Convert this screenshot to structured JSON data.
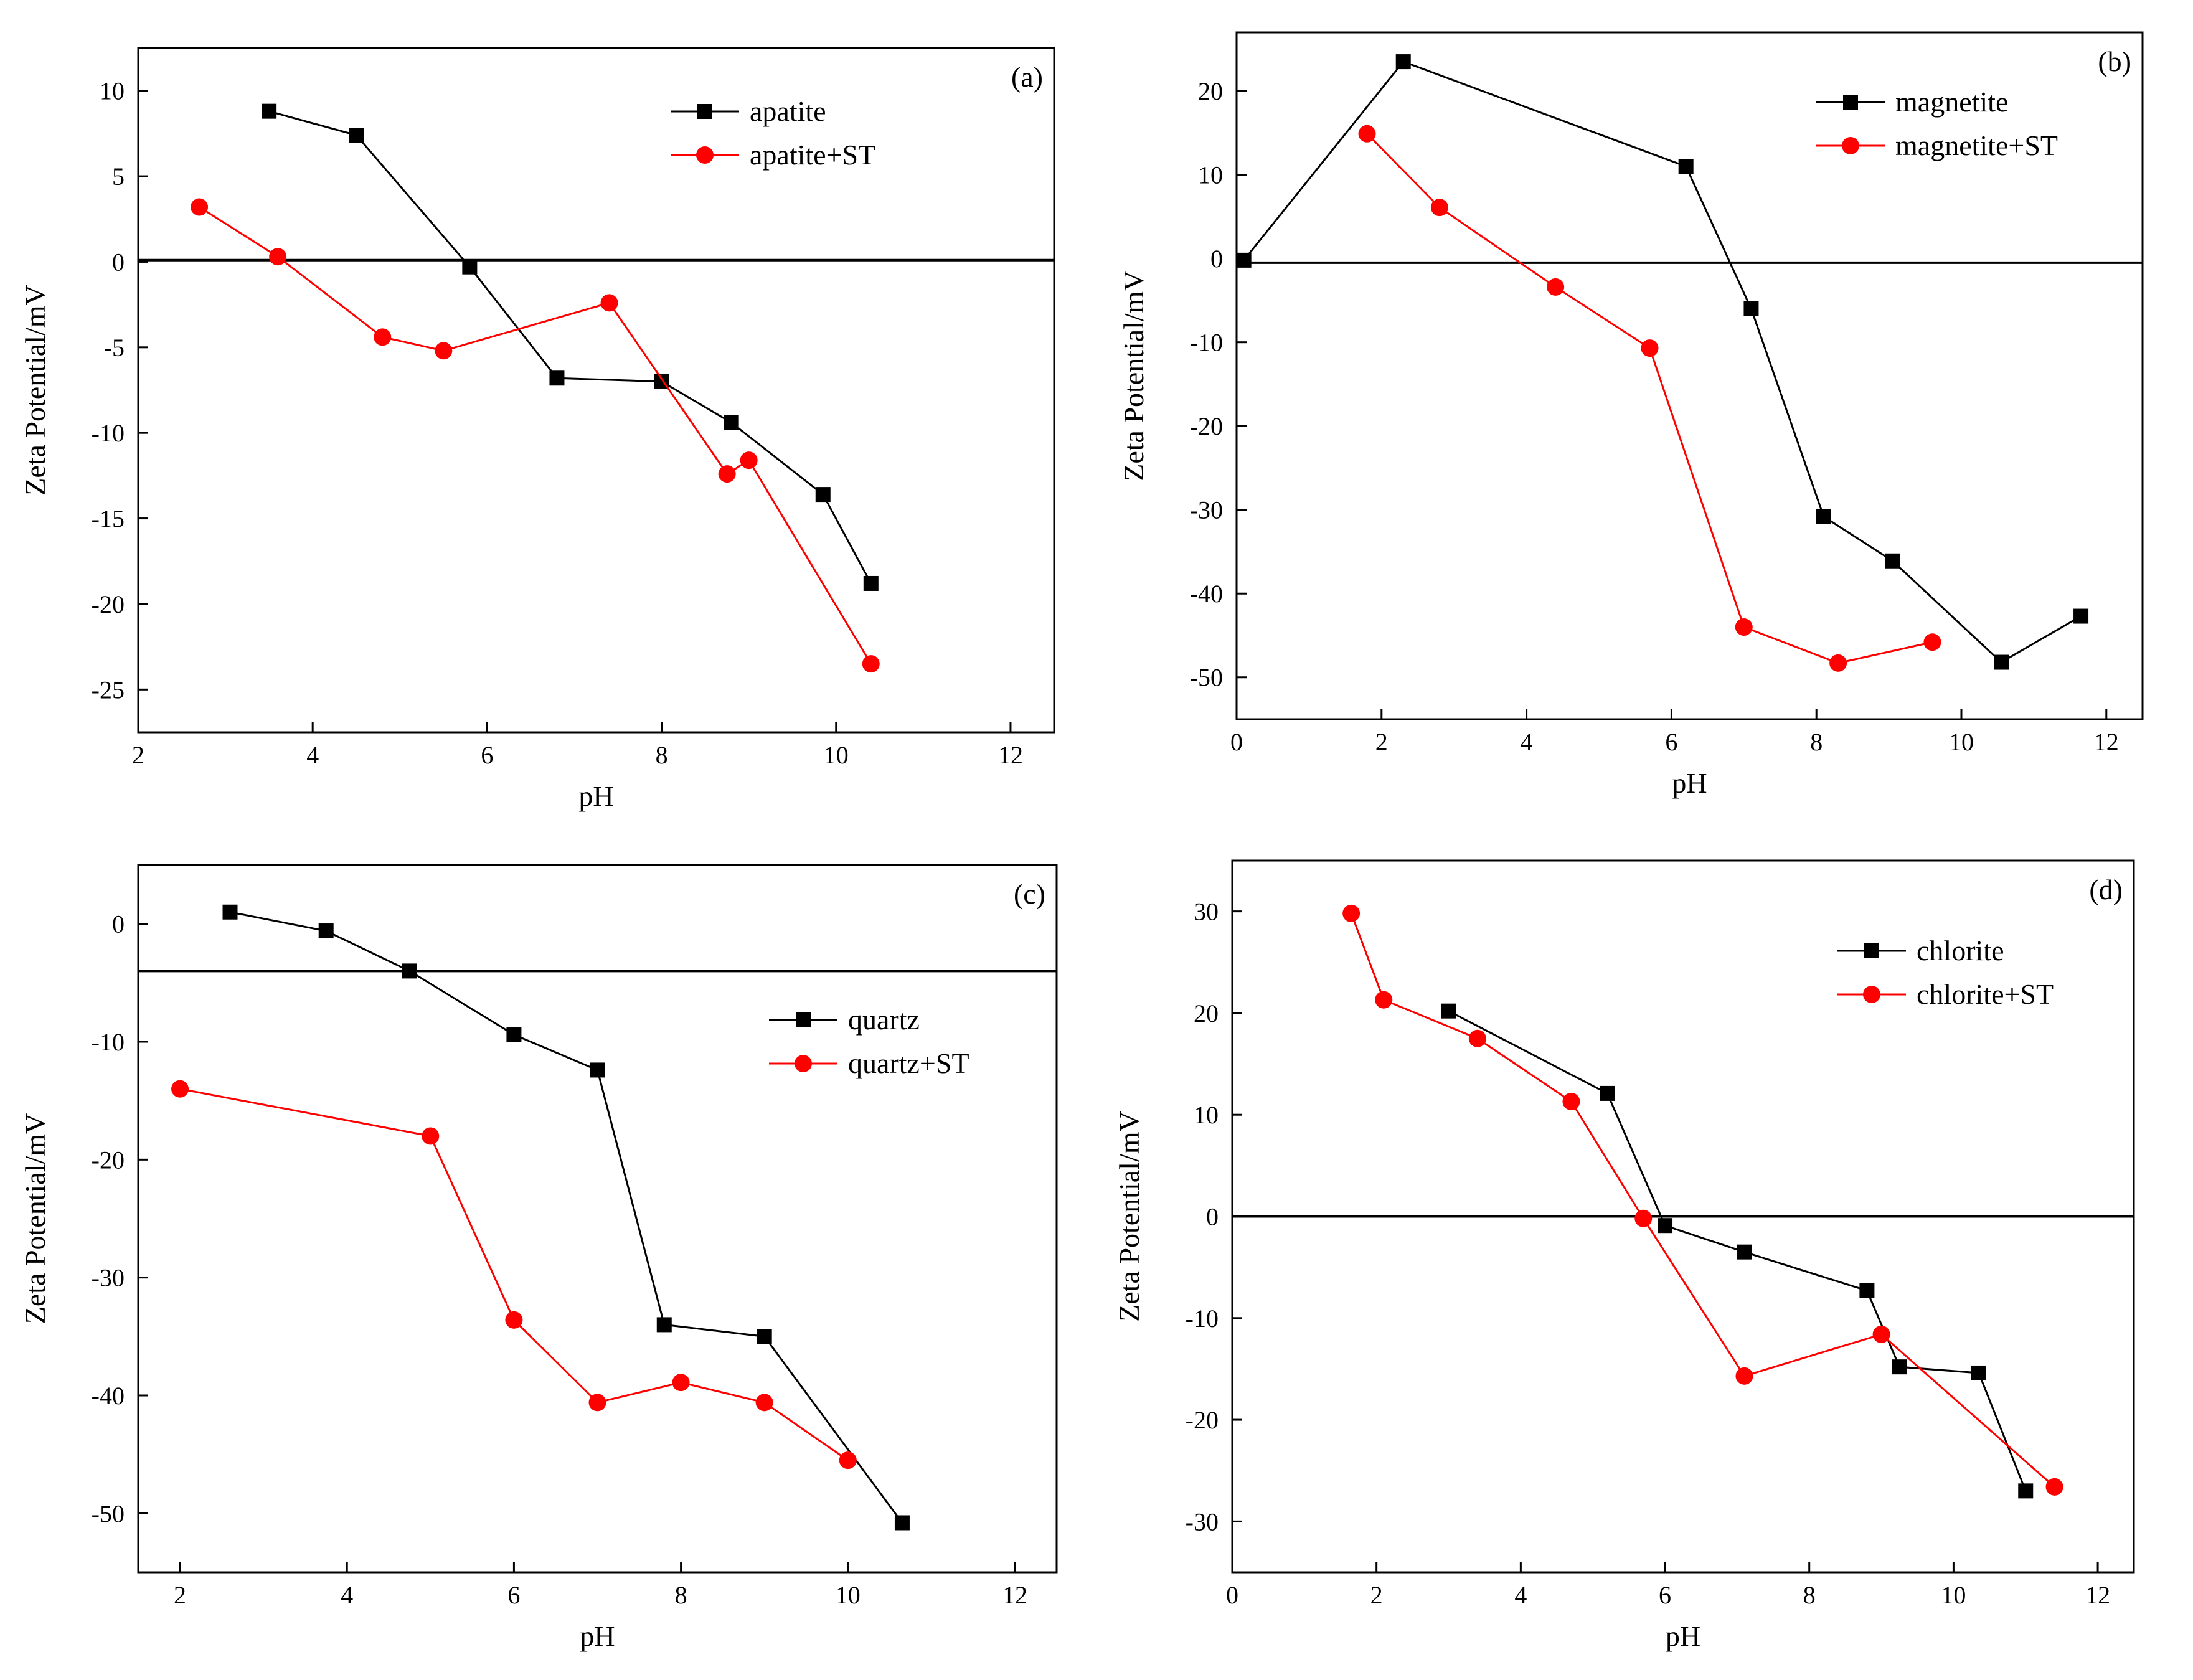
{
  "colors": {
    "series_black": "#000000",
    "series_red": "#ff0000",
    "axis": "#000000"
  },
  "chart_data": [
    {
      "type": "line",
      "panel_label": "(a)",
      "xlabel": "pH",
      "ylabel": "Zeta Potential/mV",
      "xlim": [
        2,
        12.5
      ],
      "ylim": [
        -27.5,
        12.5
      ],
      "xticks": [
        2,
        4,
        6,
        8,
        10,
        12
      ],
      "yticks": [
        10,
        5,
        0,
        -5,
        -10,
        -15,
        -20,
        -25
      ],
      "reference_line_y": 0.1,
      "legend_position": "top-right",
      "series": [
        {
          "name": "apatite",
          "marker": "square",
          "color": "#000000",
          "x": [
            3.5,
            4.5,
            5.8,
            6.8,
            8.0,
            8.8,
            9.85,
            10.4
          ],
          "y": [
            8.8,
            7.4,
            -0.3,
            -6.8,
            -7.0,
            -9.4,
            -13.6,
            -18.8
          ]
        },
        {
          "name": "apatite+ST",
          "marker": "circle",
          "color": "#ff0000",
          "x": [
            2.7,
            3.6,
            4.8,
            5.5,
            7.4,
            8.75,
            9.0,
            10.4
          ],
          "y": [
            3.2,
            0.3,
            -4.4,
            -5.2,
            -2.4,
            -12.4,
            -11.6,
            -23.5
          ]
        }
      ]
    },
    {
      "type": "line",
      "panel_label": "(b)",
      "xlabel": "pH",
      "ylabel": "Zeta Potential/mV",
      "xlim": [
        0,
        12.5
      ],
      "ylim": [
        -55,
        27
      ],
      "xticks": [
        0,
        2,
        4,
        6,
        8,
        10,
        12
      ],
      "yticks": [
        20,
        10,
        0,
        -10,
        -20,
        -30,
        -40,
        -50
      ],
      "reference_line_y": -0.5,
      "legend_position": "top-right",
      "series": [
        {
          "name": "magnetite",
          "marker": "square",
          "color": "#000000",
          "x": [
            0.1,
            2.3,
            6.2,
            7.1,
            8.1,
            9.05,
            10.55,
            11.65
          ],
          "y": [
            -0.2,
            23.5,
            11.0,
            -6.0,
            -30.8,
            -36.1,
            -48.2,
            -42.7
          ]
        },
        {
          "name": "magnetite+ST",
          "marker": "circle",
          "color": "#ff0000",
          "x": [
            1.8,
            2.8,
            4.4,
            5.7,
            7.0,
            8.3,
            9.6
          ],
          "y": [
            14.9,
            6.1,
            -3.4,
            -10.7,
            -44.0,
            -48.3,
            -45.8
          ]
        }
      ]
    },
    {
      "type": "line",
      "panel_label": "(c)",
      "xlabel": "pH",
      "ylabel": "Zeta Potential/mV",
      "xlim": [
        1.5,
        12.5
      ],
      "ylim": [
        -55,
        5
      ],
      "xticks": [
        2,
        4,
        6,
        8,
        10,
        12
      ],
      "yticks": [
        0,
        -10,
        -20,
        -30,
        -40,
        -50
      ],
      "reference_line_y": -4.0,
      "legend_position": "top-right",
      "series": [
        {
          "name": "quartz",
          "marker": "square",
          "color": "#000000",
          "x": [
            2.6,
            3.75,
            4.75,
            6.0,
            7.0,
            7.8,
            9.0,
            10.65
          ],
          "y": [
            1.0,
            -0.6,
            -4.0,
            -9.4,
            -12.4,
            -34.0,
            -35.0,
            -50.8
          ]
        },
        {
          "name": "quartz+ST",
          "marker": "circle",
          "color": "#ff0000",
          "x": [
            2.0,
            5.0,
            6.0,
            7.0,
            8.0,
            9.0,
            10.0
          ],
          "y": [
            -14.0,
            -18.0,
            -33.6,
            -40.6,
            -38.9,
            -40.6,
            -45.5
          ]
        }
      ]
    },
    {
      "type": "line",
      "panel_label": "(d)",
      "xlabel": "pH",
      "ylabel": "Zeta Potential/mV",
      "xlim": [
        0,
        12.5
      ],
      "ylim": [
        -35,
        35
      ],
      "xticks": [
        0,
        2,
        4,
        6,
        8,
        10,
        12
      ],
      "yticks": [
        30,
        20,
        10,
        0,
        -10,
        -20,
        -30
      ],
      "reference_line_y": 0,
      "legend_position": "top-right",
      "series": [
        {
          "name": "chlorite",
          "marker": "square",
          "color": "#000000",
          "x": [
            3.0,
            5.2,
            6.0,
            7.1,
            8.8,
            9.25,
            10.35,
            11.0
          ],
          "y": [
            20.2,
            12.1,
            -0.9,
            -3.5,
            -7.3,
            -14.8,
            -15.4,
            -27.0
          ]
        },
        {
          "name": "chlorite+ST",
          "marker": "circle",
          "color": "#ff0000",
          "x": [
            1.65,
            2.1,
            3.4,
            4.7,
            5.7,
            7.1,
            9.0,
            11.4
          ],
          "y": [
            29.8,
            21.3,
            17.5,
            11.3,
            -0.2,
            -15.7,
            -11.6,
            -26.6
          ]
        }
      ]
    }
  ]
}
